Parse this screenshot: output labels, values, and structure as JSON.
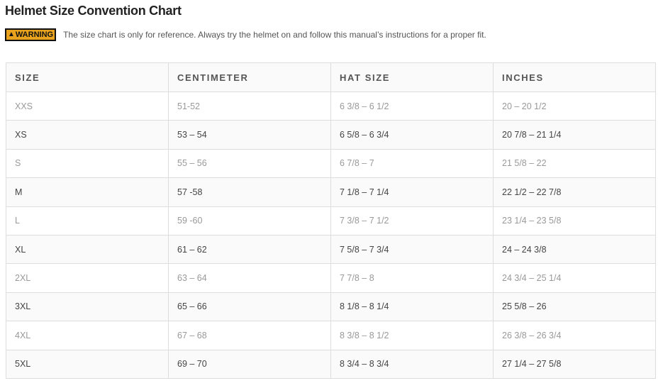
{
  "title": "Helmet Size Convention Chart",
  "warning": {
    "badge": "WARNING",
    "icon": "warning-triangle-icon",
    "text": "The size chart is only for reference. Always try the helmet on and follow this manual’s instructions for a proper fit."
  },
  "table": {
    "headers": [
      "SIZE",
      "CENTIMETER",
      "HAT SIZE",
      "INCHES"
    ],
    "rows": [
      [
        "XXS",
        "51-52",
        "6 3/8 – 6 1/2",
        "20 – 20 1/2"
      ],
      [
        "XS",
        "53 – 54",
        "6 5/8 – 6 3/4",
        "20 7/8 – 21 1/4"
      ],
      [
        "S",
        "55 – 56",
        "6 7/8 – 7",
        "21 5/8 – 22"
      ],
      [
        "M",
        "57 -58",
        "7 1/8 – 7 1/4",
        "22 1/2 – 22 7/8"
      ],
      [
        "L",
        "59 -60",
        "7 3/8 – 7 1/2",
        "23 1/4 – 23 5/8"
      ],
      [
        "XL",
        "61 – 62",
        "7 5/8 – 7 3/4",
        "24 – 24 3/8"
      ],
      [
        "2XL",
        "63 – 64",
        "7 7/8 – 8",
        "24 3/4 – 25 1/4"
      ],
      [
        "3XL",
        "65 – 66",
        "8 1/8 – 8 1/4",
        "25 5/8 – 26"
      ],
      [
        "4XL",
        "67 – 68",
        "8 3/8 – 8 1/2",
        "26 3/8 – 26 3/4"
      ],
      [
        "5XL",
        "69 – 70",
        "8 3/4 – 8 3/4",
        "27 1/4 – 27 5/8"
      ]
    ]
  },
  "colors": {
    "warning_badge": "#e8a21d",
    "border": "#dddddd",
    "stripe": "#fafafa"
  }
}
